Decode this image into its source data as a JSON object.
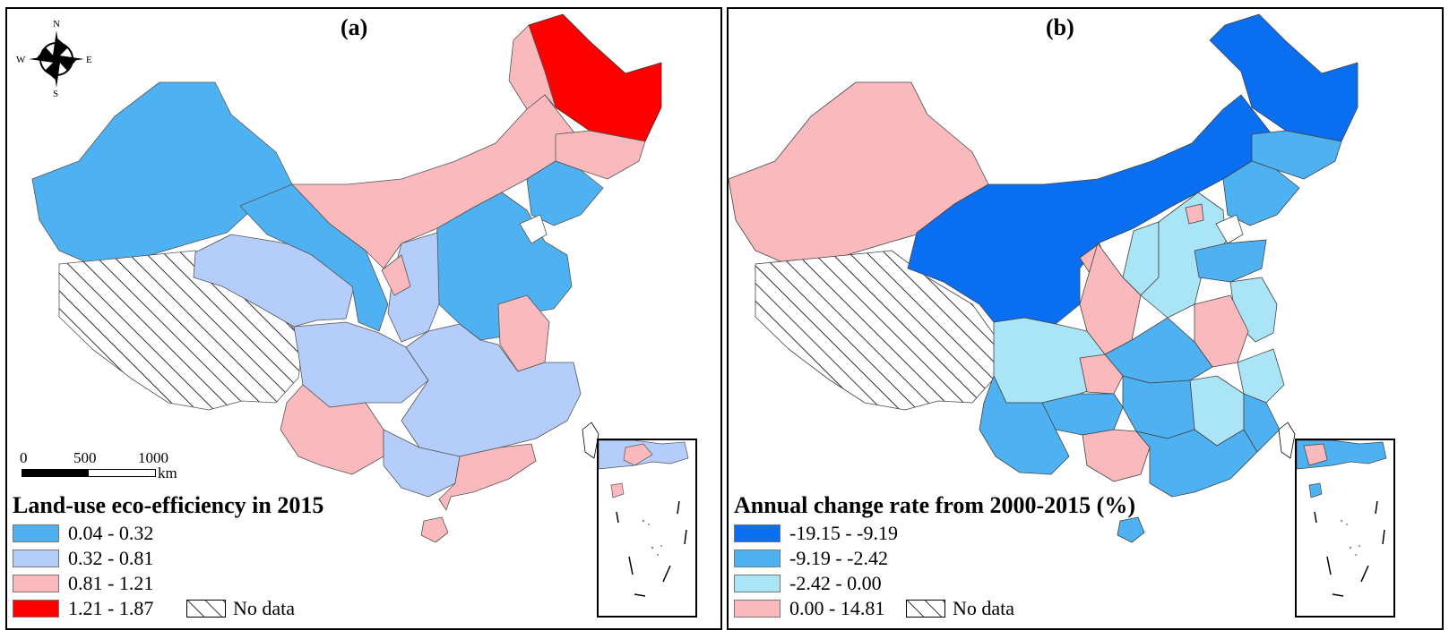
{
  "panels": [
    {
      "label": "(a)",
      "legend_title": "Land-use eco-efficiency in 2015",
      "classes": [
        {
          "range": "0.04 - 0.32",
          "color": "#4db1f2"
        },
        {
          "range": "0.32 - 0.81",
          "color": "#b5cdfa"
        },
        {
          "range": "0.81 - 1.21",
          "color": "#f9b9bd"
        },
        {
          "range": "1.21 - 1.87",
          "color": "#ff0000"
        }
      ],
      "no_data": "No data"
    },
    {
      "label": "(b)",
      "legend_title": "Annual change rate from 2000-2015 (%)",
      "classes": [
        {
          "range": "-19.15 - -9.19",
          "color": "#0a6ef0"
        },
        {
          "range": "-9.19 - -2.42",
          "color": "#4db1f2"
        },
        {
          "range": "-2.42 - 0.00",
          "color": "#a9e4f7"
        },
        {
          "range": "0.00 - 14.81",
          "color": "#f9b9bd"
        }
      ],
      "no_data": "No data"
    }
  ],
  "compass": {
    "n": "N",
    "s": "S",
    "e": "E",
    "w": "W"
  },
  "scale": {
    "t0": "0",
    "t1": "500",
    "t2": "1000",
    "unit": "km"
  }
}
